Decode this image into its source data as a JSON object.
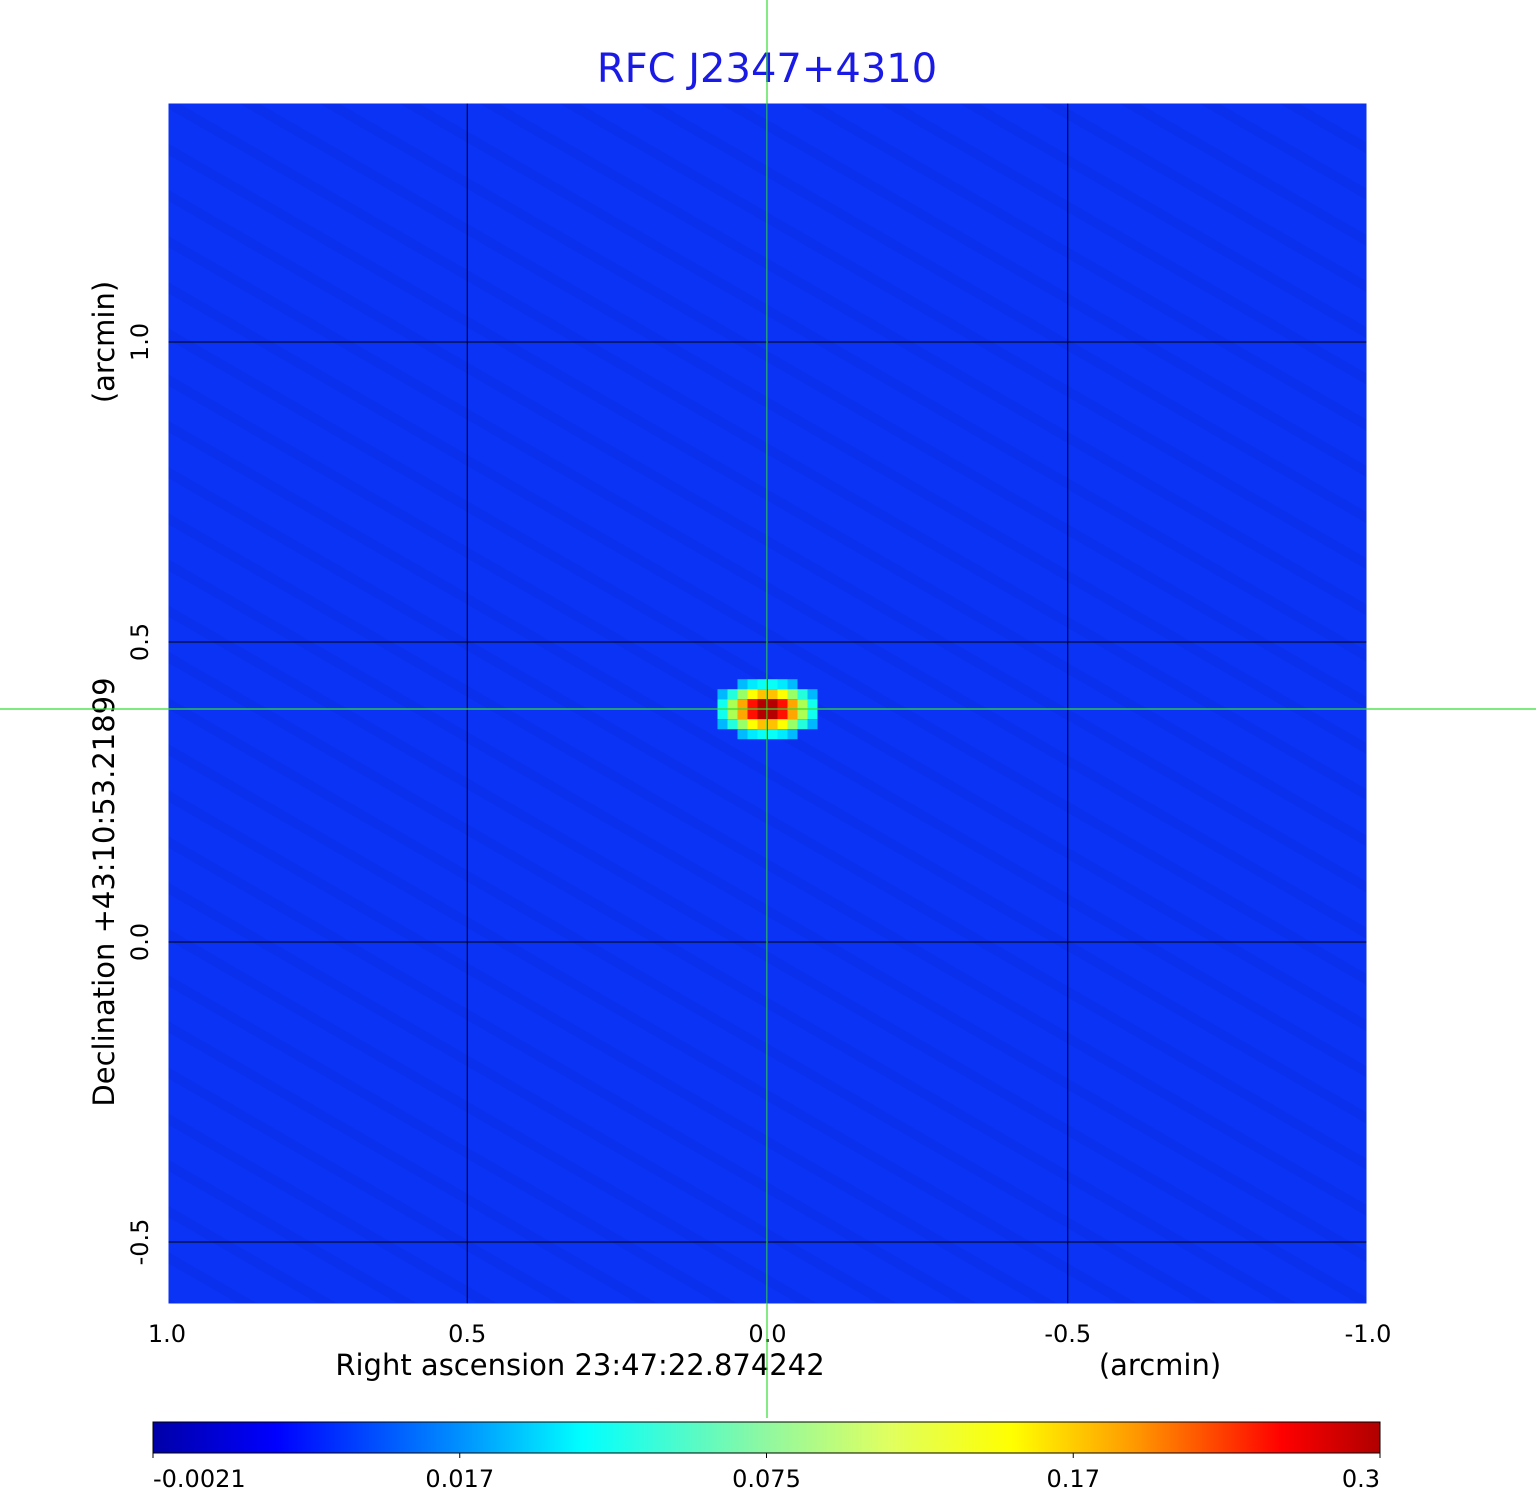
{
  "chart_data": {
    "type": "heatmap",
    "title": "RFC J2347+4310",
    "xlabel": "Right ascension  23:47:22.874242",
    "xunit": "(arcmin)",
    "ylabel": "Declination  +43:10:53.21899",
    "yunit": "(arcmin)",
    "xlim": [
      1.0,
      -1.0
    ],
    "ylim": [
      -0.605,
      1.4
    ],
    "xticks": [
      1.0,
      0.5,
      0.0,
      -0.5,
      -1.0
    ],
    "xtick_labels": [
      "1.0",
      "0.5",
      "0.0",
      "-0.5",
      "-1.0"
    ],
    "yticks": [
      -0.5,
      0.0,
      0.5,
      1.0
    ],
    "ytick_labels": [
      "-0.5",
      "0.0",
      "0.5",
      "1.0"
    ],
    "grid": true,
    "crosshair": {
      "x": 0.0,
      "y": 0.388
    },
    "source": {
      "x": 0.0,
      "y": 0.388,
      "peak": 0.3,
      "sigma_x": 0.037,
      "sigma_y": 0.02
    },
    "background_value": 0.0,
    "colorbar": {
      "colormap": "jet",
      "tick_labels": [
        "-0.0021",
        "0.017",
        "0.075",
        "0.17",
        "0.3"
      ],
      "range": [
        -0.0021,
        0.3
      ],
      "placement": "bottom"
    },
    "colors": {
      "title": "#1a1ae6",
      "crosshair": "#33dd33",
      "background": "#0b33f5"
    }
  }
}
